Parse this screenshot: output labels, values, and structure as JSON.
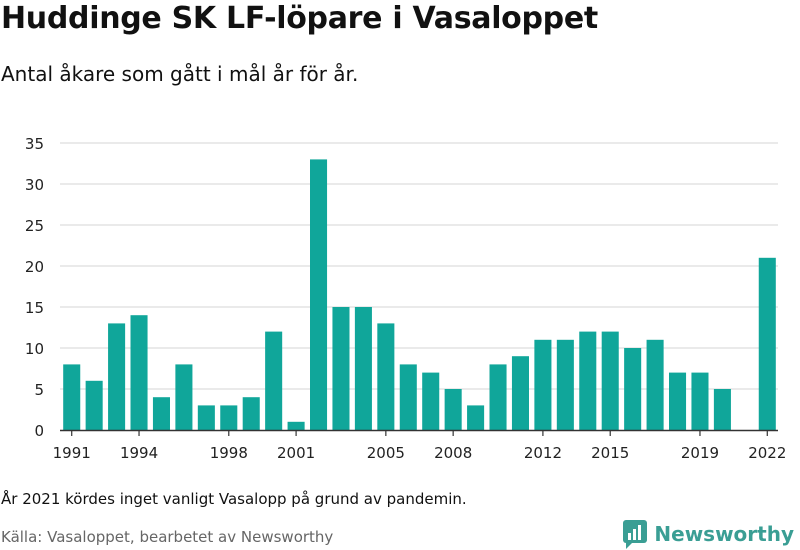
{
  "title": "Huddinge SK LF-löpare i Vasaloppet",
  "subtitle": "Antal åkare som gått i mål år för år.",
  "note": "År 2021 kördes inget vanligt Vasalopp på grund av pandemin.",
  "source": "Källa: Vasaloppet, bearbetet av Newsworthy",
  "brand": {
    "name": "Newsworthy",
    "icon": "newsworthy-logo-icon",
    "color": "#3a9e94"
  },
  "colors": {
    "bar": "#10a69a",
    "grid": "#dddddd",
    "axis": "#333333",
    "text": "#222222"
  },
  "chart_data": {
    "type": "bar",
    "title": "Huddinge SK LF-löpare i Vasaloppet",
    "xlabel": "",
    "ylabel": "",
    "x": [
      1991,
      1992,
      1993,
      1994,
      1995,
      1996,
      1997,
      1998,
      1999,
      2000,
      2001,
      2002,
      2003,
      2004,
      2005,
      2006,
      2007,
      2008,
      2009,
      2010,
      2011,
      2012,
      2013,
      2014,
      2015,
      2016,
      2017,
      2018,
      2019,
      2020,
      2021,
      2022
    ],
    "values": [
      8,
      6,
      13,
      14,
      4,
      8,
      3,
      3,
      4,
      12,
      1,
      33,
      15,
      15,
      13,
      8,
      7,
      5,
      3,
      8,
      9,
      11,
      11,
      12,
      12,
      10,
      11,
      7,
      7,
      5,
      null,
      21
    ],
    "x_tick_labels": [
      "1991",
      "1994",
      "1998",
      "2001",
      "2005",
      "2008",
      "2012",
      "2015",
      "2019",
      "2022"
    ],
    "y_ticks": [
      0,
      5,
      10,
      15,
      20,
      25,
      30,
      35
    ],
    "ylim": [
      0,
      35
    ],
    "grid": true,
    "legend": "none"
  }
}
